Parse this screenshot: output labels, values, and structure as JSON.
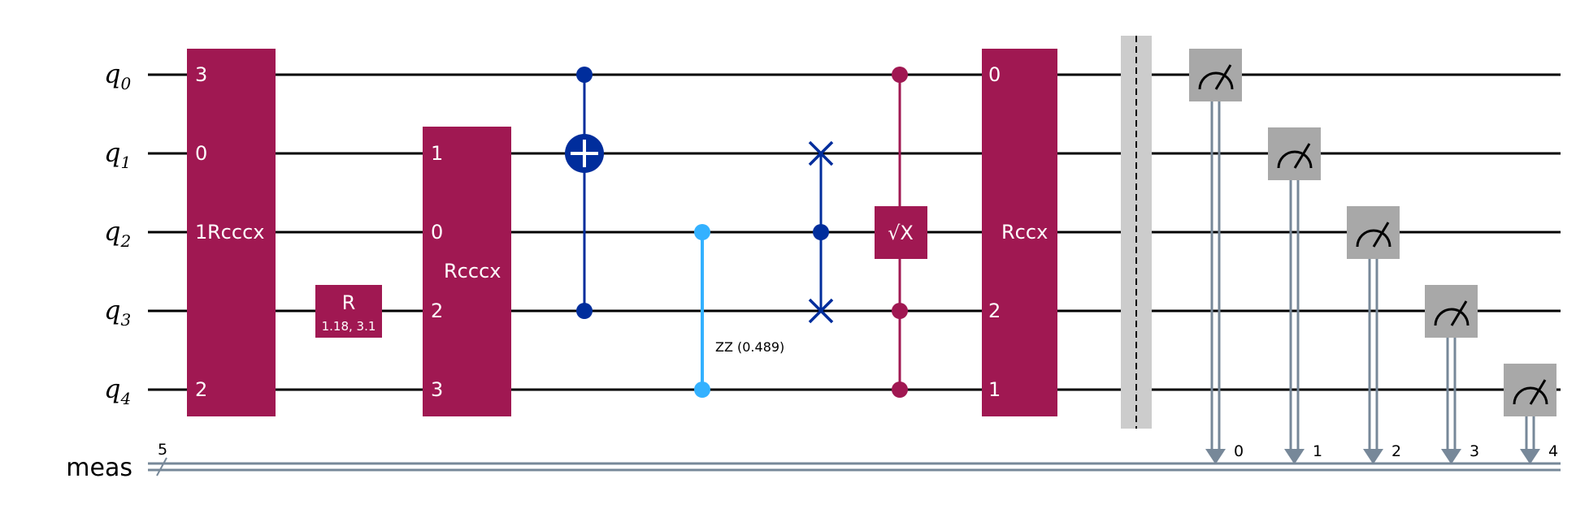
{
  "qubits": [
    {
      "name": "q",
      "index": "0"
    },
    {
      "name": "q",
      "index": "1"
    },
    {
      "name": "q",
      "index": "2"
    },
    {
      "name": "q",
      "index": "3"
    },
    {
      "name": "q",
      "index": "4"
    }
  ],
  "creg": {
    "label": "meas",
    "size": "5"
  },
  "colors": {
    "gate": "#a01852",
    "cx": "#002d9c",
    "zz": "#33b1ff",
    "measure": "#a8a8a8",
    "classical": "#778899",
    "barrier": "#cccccc"
  },
  "gates": {
    "rcccx_a": {
      "label": "Rcccx",
      "pins": [
        "3",
        "0",
        "1",
        "2"
      ]
    },
    "r": {
      "label": "R",
      "params": "1.18, 3.1"
    },
    "rcccx_b": {
      "label": "Rcccx",
      "pins": [
        "1",
        "0",
        "2",
        "3"
      ]
    },
    "rzz": {
      "label": "ZZ (0.489)"
    },
    "sx": {
      "label": "√X"
    },
    "rccx": {
      "label": "Rccx",
      "pins": [
        "0",
        "2",
        "1"
      ]
    }
  },
  "measurements": [
    "0",
    "1",
    "2",
    "3",
    "4"
  ]
}
